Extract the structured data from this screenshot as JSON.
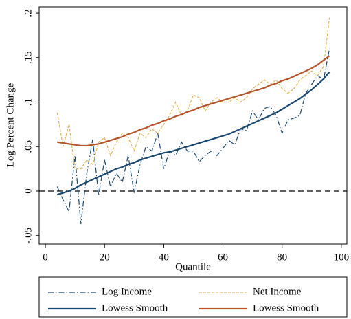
{
  "chart_data": {
    "type": "line",
    "y_label": "Log Percent Change",
    "x_label": "Quantile",
    "x": [
      4,
      6,
      8,
      10,
      12,
      14,
      16,
      18,
      20,
      22,
      24,
      26,
      28,
      30,
      32,
      34,
      36,
      38,
      40,
      42,
      44,
      46,
      48,
      50,
      52,
      54,
      56,
      58,
      60,
      62,
      64,
      66,
      68,
      70,
      72,
      74,
      76,
      78,
      80,
      82,
      84,
      86,
      88,
      90,
      92,
      94,
      96
    ],
    "series": [
      {
        "name": "Log Income",
        "color": "#1a476f",
        "style": "dashdot",
        "values": [
          0.005,
          -0.01,
          -0.023,
          0.04,
          -0.037,
          0.02,
          0.058,
          -0.005,
          0.035,
          0.005,
          0.02,
          0.01,
          0.04,
          -0.002,
          0.03,
          0.05,
          0.045,
          0.065,
          0.025,
          0.045,
          0.04,
          0.055,
          0.045,
          0.045,
          0.033,
          0.04,
          0.045,
          0.04,
          0.048,
          0.057,
          0.052,
          0.07,
          0.068,
          0.09,
          0.08,
          0.093,
          0.095,
          0.085,
          0.065,
          0.08,
          0.082,
          0.085,
          0.11,
          0.12,
          0.13,
          0.125,
          0.16
        ]
      },
      {
        "name": "Net Income",
        "color": "#e3b35b",
        "style": "dash",
        "values": [
          0.088,
          0.05,
          0.075,
          0.025,
          0.025,
          0.035,
          0.03,
          0.055,
          0.06,
          0.04,
          0.055,
          0.065,
          0.06,
          0.045,
          0.065,
          0.06,
          0.07,
          0.065,
          0.075,
          0.085,
          0.1,
          0.085,
          0.09,
          0.108,
          0.105,
          0.09,
          0.1,
          0.105,
          0.1,
          0.1,
          0.105,
          0.1,
          0.105,
          0.115,
          0.12,
          0.125,
          0.12,
          0.125,
          0.115,
          0.11,
          0.115,
          0.125,
          0.13,
          0.135,
          0.13,
          0.14,
          0.195
        ]
      },
      {
        "name": "Lowess Smooth",
        "color": "#1a476f",
        "style": "solid",
        "values": [
          -0.004,
          -0.002,
          0.0,
          0.003,
          0.007,
          0.01,
          0.013,
          0.016,
          0.019,
          0.022,
          0.025,
          0.027,
          0.03,
          0.032,
          0.035,
          0.037,
          0.039,
          0.041,
          0.043,
          0.044,
          0.046,
          0.048,
          0.05,
          0.052,
          0.054,
          0.056,
          0.058,
          0.06,
          0.062,
          0.064,
          0.067,
          0.07,
          0.073,
          0.076,
          0.079,
          0.082,
          0.085,
          0.088,
          0.092,
          0.096,
          0.1,
          0.104,
          0.109,
          0.114,
          0.12,
          0.126,
          0.134
        ]
      },
      {
        "name": "Lowess Smooth",
        "color": "#b5532a",
        "style": "solid",
        "values": [
          0.055,
          0.054,
          0.053,
          0.052,
          0.051,
          0.051,
          0.052,
          0.053,
          0.055,
          0.057,
          0.059,
          0.061,
          0.064,
          0.066,
          0.069,
          0.071,
          0.074,
          0.076,
          0.079,
          0.081,
          0.084,
          0.086,
          0.089,
          0.091,
          0.094,
          0.096,
          0.098,
          0.1,
          0.102,
          0.104,
          0.106,
          0.108,
          0.11,
          0.112,
          0.114,
          0.116,
          0.119,
          0.121,
          0.124,
          0.126,
          0.129,
          0.132,
          0.135,
          0.138,
          0.142,
          0.147,
          0.152
        ]
      }
    ],
    "xlim": [
      -2.1,
      101.9
    ],
    "ylim": [
      -0.0595,
      0.207
    ],
    "xticks": [
      0,
      20,
      40,
      60,
      80,
      100
    ],
    "yticks": [
      {
        "value": -0.05,
        "label": "-.05"
      },
      {
        "value": 0,
        "label": "0"
      },
      {
        "value": 0.05,
        "label": ".05"
      },
      {
        "value": 0.1,
        "label": ".1"
      },
      {
        "value": 0.15,
        "label": ".15"
      },
      {
        "value": 0.2,
        "label": ".2"
      }
    ],
    "reference_line": 0,
    "legend": "bottom"
  }
}
